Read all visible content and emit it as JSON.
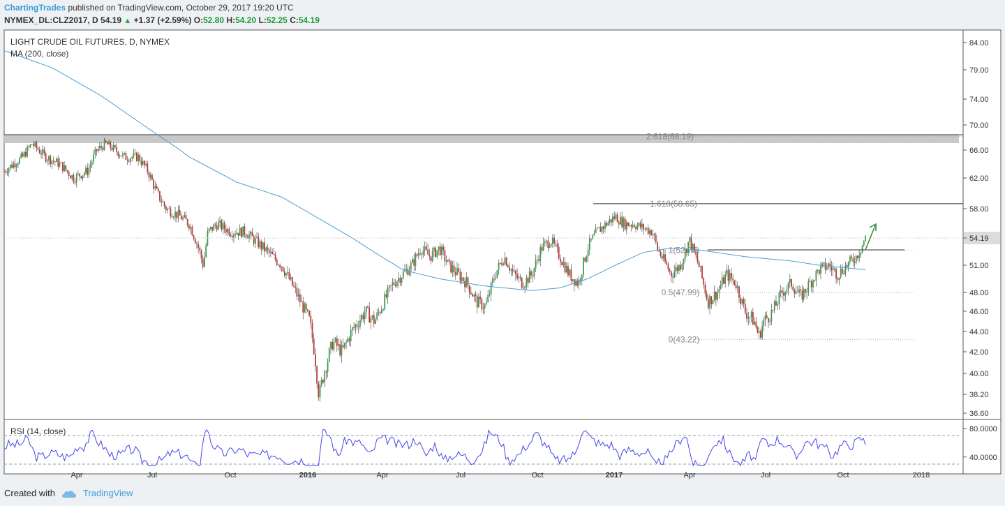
{
  "header": {
    "author": "ChartingTrades",
    "published": "published on TradingView.com, October 29, 2017 19:20 UTC",
    "symbol": "NYMEX_DL:CLZ2017, D",
    "last": "54.19",
    "change": "+1.37 (+2.59%)",
    "o_label": "O:",
    "o_val": "52.80",
    "h_label": "H:",
    "h_val": "54.20",
    "l_label": "L:",
    "l_val": "52.25",
    "c_label": "C:",
    "c_val": "54.19"
  },
  "pane": {
    "title": "LIGHT CRUDE OIL FUTURES, D, NYMEX",
    "indicator": "MA (200, close)",
    "rsi_title": "RSI (14, close)"
  },
  "footer": {
    "created_with": "Created with",
    "brand": "TradingView"
  },
  "colors": {
    "up": "#3d9a4f",
    "down": "#b93a32",
    "ma": "#4a9fd6",
    "rsi": "#4444ee",
    "arrow": "#2e8b3a",
    "zone": "#c8c8c8"
  },
  "chart_data": {
    "type": "candlestick",
    "symbol": "NYMEX_DL:CLZ2017",
    "yticks": [
      "84.00",
      "79.00",
      "74.00",
      "70.00",
      "66.00",
      "62.00",
      "58.00",
      "54.19",
      "51.00",
      "48.00",
      "46.00",
      "44.00",
      "42.00",
      "40.00",
      "38.20",
      "36.60"
    ],
    "ytick_values": [
      84,
      79,
      74,
      70,
      66,
      62,
      58,
      54.19,
      51,
      48,
      46,
      44,
      42,
      40,
      38.2,
      36.6
    ],
    "xticks": [
      "Apr",
      "Jul",
      "Oct",
      "2016",
      "Apr",
      "Jul",
      "Oct",
      "2017",
      "Apr",
      "Jul",
      "Oct",
      "2018"
    ],
    "bold_xticks": [
      "2016",
      "2017"
    ],
    "last_price": 54.19,
    "price_path": [
      [
        0,
        63
      ],
      [
        0.01,
        64
      ],
      [
        0.02,
        65
      ],
      [
        0.03,
        67
      ],
      [
        0.045,
        65
      ],
      [
        0.06,
        64
      ],
      [
        0.075,
        62
      ],
      [
        0.09,
        63
      ],
      [
        0.1,
        66
      ],
      [
        0.11,
        67
      ],
      [
        0.12,
        66
      ],
      [
        0.13,
        65
      ],
      [
        0.145,
        65
      ],
      [
        0.155,
        63
      ],
      [
        0.165,
        60
      ],
      [
        0.175,
        58
      ],
      [
        0.19,
        57
      ],
      [
        0.2,
        56
      ],
      [
        0.21,
        53
      ],
      [
        0.215,
        51
      ],
      [
        0.22,
        55
      ],
      [
        0.23,
        56
      ],
      [
        0.245,
        55
      ],
      [
        0.26,
        55
      ],
      [
        0.27,
        54
      ],
      [
        0.28,
        53
      ],
      [
        0.29,
        52
      ],
      [
        0.3,
        51
      ],
      [
        0.31,
        49
      ],
      [
        0.32,
        47
      ],
      [
        0.33,
        45
      ],
      [
        0.335,
        42
      ],
      [
        0.34,
        38
      ],
      [
        0.345,
        40
      ],
      [
        0.355,
        43
      ],
      [
        0.365,
        42
      ],
      [
        0.375,
        44
      ],
      [
        0.39,
        46
      ],
      [
        0.4,
        45
      ],
      [
        0.41,
        47
      ],
      [
        0.42,
        49
      ],
      [
        0.43,
        50
      ],
      [
        0.44,
        51
      ],
      [
        0.45,
        53
      ],
      [
        0.46,
        52
      ],
      [
        0.47,
        53
      ],
      [
        0.48,
        51
      ],
      [
        0.49,
        50
      ],
      [
        0.5,
        49
      ],
      [
        0.51,
        47
      ],
      [
        0.52,
        46.5
      ],
      [
        0.53,
        50
      ],
      [
        0.54,
        52
      ],
      [
        0.55,
        50
      ],
      [
        0.56,
        49
      ],
      [
        0.57,
        50
      ],
      [
        0.58,
        53
      ],
      [
        0.59,
        54
      ],
      [
        0.6,
        52
      ],
      [
        0.61,
        50
      ],
      [
        0.62,
        49
      ],
      [
        0.63,
        53
      ],
      [
        0.64,
        55
      ],
      [
        0.65,
        56
      ],
      [
        0.66,
        57
      ],
      [
        0.67,
        56
      ],
      [
        0.68,
        56
      ],
      [
        0.69,
        55.5
      ],
      [
        0.7,
        55
      ],
      [
        0.705,
        53
      ],
      [
        0.71,
        52
      ],
      [
        0.72,
        50
      ],
      [
        0.73,
        51
      ],
      [
        0.74,
        54
      ],
      [
        0.75,
        51
      ],
      [
        0.755,
        49
      ],
      [
        0.76,
        47
      ],
      [
        0.77,
        48
      ],
      [
        0.78,
        50
      ],
      [
        0.79,
        49
      ],
      [
        0.8,
        46
      ],
      [
        0.81,
        45
      ],
      [
        0.815,
        43.5
      ],
      [
        0.82,
        45
      ],
      [
        0.83,
        46
      ],
      [
        0.84,
        48
      ],
      [
        0.85,
        49
      ],
      [
        0.86,
        47.5
      ],
      [
        0.87,
        49
      ],
      [
        0.88,
        50.5
      ],
      [
        0.89,
        51
      ],
      [
        0.9,
        50
      ],
      [
        0.91,
        51
      ],
      [
        0.92,
        52
      ],
      [
        0.925,
        53
      ],
      [
        0.93,
        54.19
      ]
    ],
    "ma200_path": [
      [
        0,
        82.5
      ],
      [
        0.05,
        79.5
      ],
      [
        0.1,
        75
      ],
      [
        0.15,
        70
      ],
      [
        0.2,
        65
      ],
      [
        0.25,
        61.5
      ],
      [
        0.3,
        59.5
      ],
      [
        0.35,
        56
      ],
      [
        0.4,
        52.5
      ],
      [
        0.43,
        50.5
      ],
      [
        0.47,
        49.5
      ],
      [
        0.52,
        48.7
      ],
      [
        0.57,
        48.2
      ],
      [
        0.6,
        48.5
      ],
      [
        0.63,
        49.5
      ],
      [
        0.66,
        51
      ],
      [
        0.69,
        52.5
      ],
      [
        0.72,
        53
      ],
      [
        0.75,
        52.8
      ],
      [
        0.8,
        52
      ],
      [
        0.85,
        51.5
      ],
      [
        0.88,
        51
      ],
      [
        0.9,
        50.8
      ],
      [
        0.93,
        50.5
      ]
    ],
    "fib_levels": [
      {
        "label": "2.618(68.19)",
        "value": 68.19
      },
      {
        "label": "1.618(58.65)",
        "value": 58.65
      },
      {
        "label": "1(52.76)",
        "value": 52.76
      },
      {
        "label": "0.5(47.99)",
        "value": 47.99
      },
      {
        "label": "0(43.22)",
        "value": 43.22
      }
    ],
    "rsi": {
      "name": "RSI (14, close)",
      "yticks": [
        "80.0000",
        "40.0000"
      ],
      "ytick_values": [
        80,
        40
      ],
      "bands": [
        70,
        30
      ],
      "range": [
        25,
        85
      ]
    }
  }
}
